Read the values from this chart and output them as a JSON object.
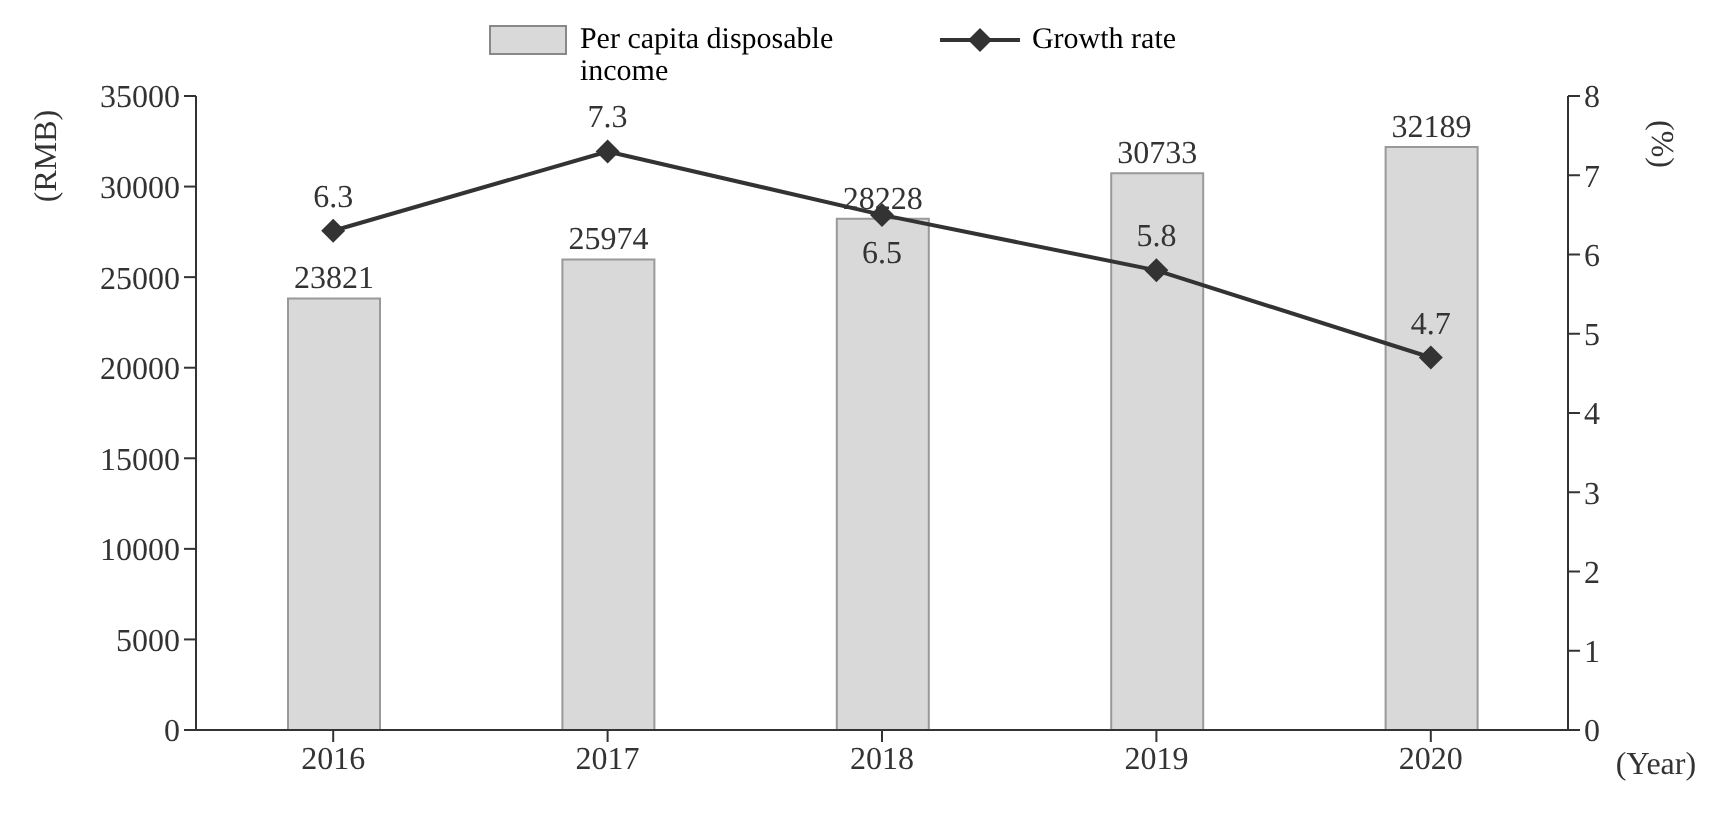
{
  "chart_data": {
    "type": "bar",
    "categories": [
      "2016",
      "2017",
      "2018",
      "2019",
      "2020"
    ],
    "xlabel": "(Year)",
    "ylabel": "(RMB)",
    "y2label": "(%)",
    "ylim": [
      0,
      35000
    ],
    "yticks": [
      0,
      5000,
      10000,
      15000,
      20000,
      25000,
      30000,
      35000
    ],
    "y2lim": [
      0,
      8
    ],
    "y2ticks": [
      0,
      1,
      2,
      3,
      4,
      5,
      6,
      7,
      8
    ],
    "series": [
      {
        "name": "Per capita disposable income",
        "color": "#d9d9d9",
        "values": [
          23821,
          25974,
          28228,
          30733,
          32189
        ]
      },
      {
        "name": "Growth rate",
        "type": "line",
        "axis": "y2",
        "color": "#333333",
        "marker": "diamond",
        "values": [
          6.3,
          7.3,
          6.5,
          5.8,
          4.7
        ]
      }
    ],
    "data_labels": true,
    "legend": "top",
    "grid": false
  }
}
